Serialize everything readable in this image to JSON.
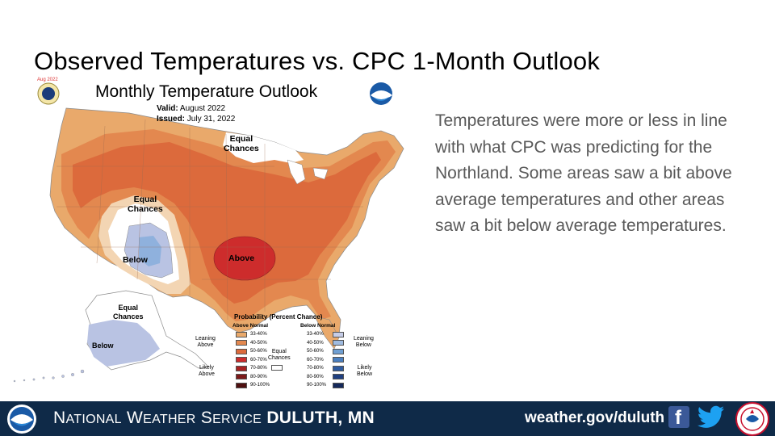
{
  "slide": {
    "title": "Observed Temperatures vs. CPC 1-Month Outlook"
  },
  "map": {
    "title": "Monthly Temperature Outlook",
    "badge": "Aug 2022",
    "valid_label": "Valid:",
    "valid_value": "August 2022",
    "issued_label": "Issued:",
    "issued_value": "July 31, 2022",
    "labels": {
      "equal_chances_north": [
        "Equal",
        "Chances"
      ],
      "equal_chances_west": [
        "Equal",
        "Chances"
      ],
      "below_west": "Below",
      "above_south": "Above",
      "equal_chances_alaska": [
        "Equal",
        "Chances"
      ],
      "below_alaska": "Below"
    },
    "colors": {
      "above_33_40": "#e9a96b",
      "above_40_50": "#e3884f",
      "above_50_60": "#dc6a3c",
      "above_60_70": "#cd2c2c",
      "below_33_40": "#b9c3e3",
      "below_40_50": "#8fb1dd",
      "equal_chances": "#ffffff"
    },
    "legend": {
      "title": "Probability (Percent Chance)",
      "above_head": "Above Normal",
      "below_head": "Below Normal",
      "equal_chances": [
        "Equal",
        "Chances"
      ],
      "leaning_above": [
        "Leaning",
        "Above"
      ],
      "likely_above": [
        "Likely",
        "Above"
      ],
      "leaning_below": [
        "Leaning",
        "Below"
      ],
      "likely_below": [
        "Likely",
        "Below"
      ],
      "ranges": [
        "33-40%",
        "40-50%",
        "50-60%",
        "60-70%",
        "70-80%",
        "80-90%",
        "90-100%"
      ],
      "above_colors": [
        "#e9a96b",
        "#e3884f",
        "#dc6a3c",
        "#cd2c2c",
        "#a82222",
        "#7c1a1a",
        "#4f1010"
      ],
      "below_colors": [
        "#c6cde8",
        "#9fbbe0",
        "#6f9fd2",
        "#4a7fc0",
        "#2f5ba0",
        "#1f3f80",
        "#14285a"
      ]
    }
  },
  "body": {
    "text": "Temperatures were more or less in line with what CPC was predicting for the Northland. Some areas saw a bit above average temperatures and other areas saw a bit below average temperatures."
  },
  "footer": {
    "name_initial_1": "N",
    "name_rest_1": "ATIONAL",
    "name_initial_2": "W",
    "name_rest_2": "EATHER",
    "name_initial_3": "S",
    "name_rest_3": "ERVICE",
    "office": "DULUTH, MN",
    "url": "weather.gov/duluth",
    "facebook_icon": "f",
    "logo_text": "NOAA"
  }
}
